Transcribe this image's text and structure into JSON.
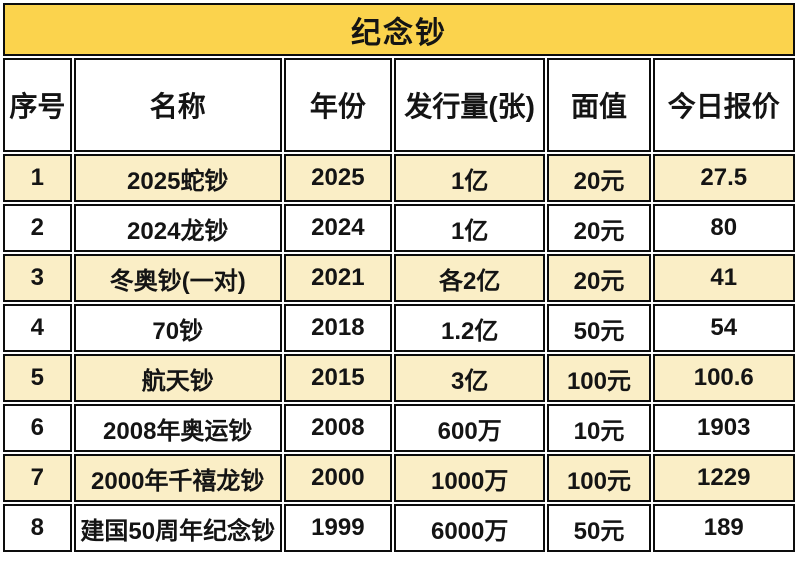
{
  "chart_data": {
    "type": "table",
    "title": "纪念钞",
    "columns": [
      "序号",
      "名称",
      "年份",
      "发行量(张)",
      "面值",
      "今日报价"
    ],
    "rows": [
      {
        "seq": "1",
        "name": "2025蛇钞",
        "year": "2025",
        "issuance": "1亿",
        "face_value": "20元",
        "price": "27.5"
      },
      {
        "seq": "2",
        "name": "2024龙钞",
        "year": "2024",
        "issuance": "1亿",
        "face_value": "20元",
        "price": "80"
      },
      {
        "seq": "3",
        "name": "冬奥钞(一对)",
        "year": "2021",
        "issuance": "各2亿",
        "face_value": "20元",
        "price": "41"
      },
      {
        "seq": "4",
        "name": "70钞",
        "year": "2018",
        "issuance": "1.2亿",
        "face_value": "50元",
        "price": "54"
      },
      {
        "seq": "5",
        "name": "航天钞",
        "year": "2015",
        "issuance": "3亿",
        "face_value": "100元",
        "price": "100.6"
      },
      {
        "seq": "6",
        "name": "2008年奥运钞",
        "year": "2008",
        "issuance": "600万",
        "face_value": "10元",
        "price": "1903"
      },
      {
        "seq": "7",
        "name": "2000年千禧龙钞",
        "year": "2000",
        "issuance": "1000万",
        "face_value": "100元",
        "price": "1229"
      },
      {
        "seq": "8",
        "name": "建国50周年纪念钞",
        "year": "1999",
        "issuance": "6000万",
        "face_value": "50元",
        "price": "189"
      }
    ],
    "layout": {
      "legend": "none",
      "grid": "all-borders",
      "alternating_row_shading": "odd rows shaded"
    }
  },
  "colors": {
    "title_bg": "#FBD34D",
    "row_alt_bg": "#FAEEC6",
    "row_bg": "#FFFFFF",
    "border": "#0D0D0D",
    "text": "#141414"
  }
}
